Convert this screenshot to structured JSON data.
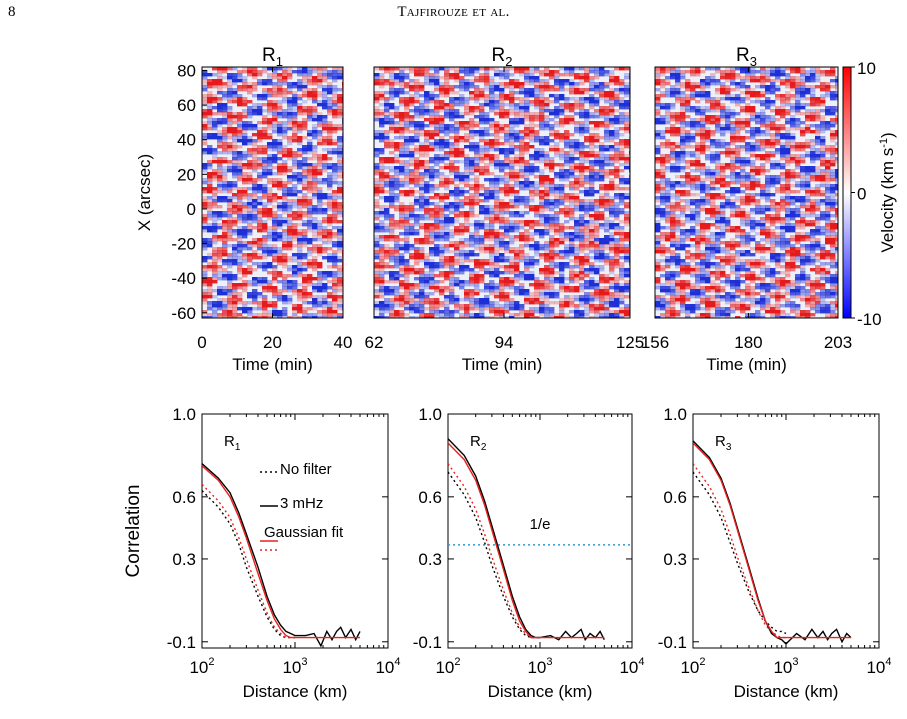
{
  "header": {
    "page_number": "8",
    "running_head": "Tajfirouze et al."
  },
  "colors": {
    "velocity_positive": "#e41a1c",
    "velocity_negative": "#1f2fd6",
    "no_filter": "#000000",
    "filtered_3mhz": "#000000",
    "gaussian_fit": "#e8221f",
    "e_fold_line": "#2a9fd6"
  },
  "chart_data": [
    {
      "type": "heatmap",
      "panel": "R1",
      "title_main": "R",
      "title_sub": "1",
      "xlabel": "Time (min)",
      "ylabel": "X (arcsec)",
      "xlim": [
        0,
        40
      ],
      "ylim": [
        -63,
        82
      ],
      "xticks": [
        "0",
        "20",
        "40"
      ],
      "yticks": [
        "80",
        "60",
        "40",
        "20",
        "0",
        "-20",
        "-40",
        "-60"
      ]
    },
    {
      "type": "heatmap",
      "panel": "R2",
      "title_main": "R",
      "title_sub": "2",
      "xlabel": "Time (min)",
      "ylabel": "",
      "xlim": [
        62,
        125
      ],
      "ylim": [
        -63,
        82
      ],
      "xticks": [
        "62",
        "94",
        "125"
      ]
    },
    {
      "type": "heatmap",
      "panel": "R3",
      "title_main": "R",
      "title_sub": "3",
      "xlabel": "Time (min)",
      "ylabel": "",
      "xlim": [
        156,
        203
      ],
      "ylim": [
        -63,
        82
      ],
      "xticks": [
        "156",
        "180",
        "203"
      ],
      "colorbar": {
        "label_main": "Velocity (km s",
        "label_sup": "-1",
        "label_end": ")",
        "range": [
          -10,
          10
        ],
        "ticks": [
          "10",
          "0",
          "-10"
        ]
      }
    },
    {
      "type": "line",
      "panel": "R1",
      "label_main": "R",
      "label_sub": "1",
      "xlabel": "Distance (km)",
      "ylabel": "Correlation",
      "xscale": "log",
      "xlim": [
        100,
        10000
      ],
      "ylim": [
        -0.13,
        1.0
      ],
      "xticks": [
        "10",
        "10",
        "10"
      ],
      "xtick_exps": [
        "2",
        "3",
        "4"
      ],
      "yticks": [
        "1.0",
        "0.6",
        "0.3",
        "-0.1"
      ],
      "legend": {
        "no_filter": "No filter",
        "filtered": "3 mHz",
        "fit": "Gaussian fit"
      },
      "series": [
        {
          "name": "No filter",
          "style": "dotted-black",
          "x": [
            100,
            150,
            200,
            250,
            300,
            400,
            500,
            600,
            700,
            800,
            900,
            1000
          ],
          "y": [
            0.63,
            0.55,
            0.47,
            0.37,
            0.26,
            0.12,
            0.02,
            -0.04,
            -0.07,
            -0.08,
            -0.08,
            -0.08
          ]
        },
        {
          "name": "",
          "style": "dotted-red",
          "x": [
            100,
            150,
            200,
            250,
            300,
            400,
            500,
            600,
            700,
            800,
            900,
            1000
          ],
          "y": [
            0.66,
            0.58,
            0.5,
            0.4,
            0.3,
            0.15,
            0.04,
            -0.03,
            -0.06,
            -0.08,
            -0.08,
            -0.08
          ]
        },
        {
          "name": "3 mHz",
          "style": "solid-black",
          "x": [
            100,
            150,
            200,
            250,
            300,
            400,
            500,
            600,
            700,
            800,
            900,
            1000,
            1300,
            1600,
            1900,
            2200,
            2500,
            2800,
            3100,
            3500,
            4000,
            4500,
            5000
          ],
          "y": [
            0.76,
            0.69,
            0.62,
            0.52,
            0.42,
            0.26,
            0.12,
            0.03,
            -0.02,
            -0.05,
            -0.06,
            -0.07,
            -0.07,
            -0.06,
            -0.12,
            -0.05,
            -0.09,
            -0.05,
            -0.03,
            -0.08,
            -0.04,
            -0.09,
            -0.05
          ]
        },
        {
          "name": "Gaussian fit",
          "style": "solid-red",
          "x": [
            100,
            150,
            200,
            250,
            300,
            400,
            500,
            600,
            700,
            800,
            900,
            1000,
            2000,
            5000
          ],
          "y": [
            0.75,
            0.68,
            0.6,
            0.5,
            0.4,
            0.23,
            0.1,
            0.01,
            -0.04,
            -0.07,
            -0.08,
            -0.08,
            -0.08,
            -0.08
          ]
        }
      ]
    },
    {
      "type": "line",
      "panel": "R2",
      "label_main": "R",
      "label_sub": "2",
      "xlabel": "Distance (km)",
      "ylabel": "",
      "xscale": "log",
      "xlim": [
        100,
        10000
      ],
      "ylim": [
        -0.13,
        1.0
      ],
      "xticks": [
        "10",
        "10",
        "10"
      ],
      "xtick_exps": [
        "2",
        "3",
        "4"
      ],
      "yticks": [
        "1.0",
        "0.6",
        "0.3",
        "-0.1"
      ],
      "annotation": "1/e",
      "hline": 0.368,
      "series": [
        {
          "name": "",
          "style": "dotted-black",
          "x": [
            100,
            150,
            200,
            250,
            300,
            400,
            500,
            600,
            700,
            800,
            900,
            1000
          ],
          "y": [
            0.72,
            0.61,
            0.5,
            0.38,
            0.27,
            0.12,
            0.02,
            -0.04,
            -0.07,
            -0.08,
            -0.08,
            -0.08
          ]
        },
        {
          "name": "",
          "style": "dotted-red",
          "x": [
            100,
            150,
            200,
            250,
            300,
            400,
            500,
            600,
            700,
            800,
            900,
            1000
          ],
          "y": [
            0.76,
            0.65,
            0.54,
            0.42,
            0.31,
            0.15,
            0.04,
            -0.03,
            -0.06,
            -0.08,
            -0.08,
            -0.08
          ]
        },
        {
          "name": "",
          "style": "solid-black",
          "x": [
            100,
            150,
            200,
            250,
            300,
            400,
            500,
            600,
            700,
            800,
            900,
            1000,
            1300,
            1600,
            1900,
            2200,
            2500,
            2800,
            3100,
            3500,
            4000,
            4500,
            5000
          ],
          "y": [
            0.88,
            0.8,
            0.7,
            0.58,
            0.46,
            0.27,
            0.12,
            0.02,
            -0.04,
            -0.07,
            -0.08,
            -0.08,
            -0.07,
            -0.09,
            -0.05,
            -0.08,
            -0.06,
            -0.04,
            -0.09,
            -0.06,
            -0.08,
            -0.05,
            -0.09
          ]
        },
        {
          "name": "",
          "style": "solid-red",
          "x": [
            100,
            150,
            200,
            250,
            300,
            400,
            500,
            600,
            700,
            800,
            900,
            1000,
            2000,
            5000
          ],
          "y": [
            0.86,
            0.78,
            0.68,
            0.56,
            0.44,
            0.25,
            0.1,
            0.0,
            -0.05,
            -0.08,
            -0.08,
            -0.08,
            -0.08,
            -0.08
          ]
        }
      ]
    },
    {
      "type": "line",
      "panel": "R3",
      "label_main": "R",
      "label_sub": "3",
      "xlabel": "Distance (km)",
      "ylabel": "",
      "xscale": "log",
      "xlim": [
        100,
        10000
      ],
      "ylim": [
        -0.13,
        1.0
      ],
      "xticks": [
        "10",
        "10",
        "10"
      ],
      "xtick_exps": [
        "2",
        "3",
        "4"
      ],
      "yticks": [
        "1.0",
        "0.6",
        "0.3",
        "-0.1"
      ],
      "series": [
        {
          "name": "",
          "style": "dotted-black",
          "x": [
            100,
            150,
            200,
            250,
            300,
            400,
            500,
            600,
            700,
            800,
            900,
            1000
          ],
          "y": [
            0.72,
            0.61,
            0.5,
            0.38,
            0.28,
            0.14,
            0.05,
            0.0,
            -0.03,
            -0.05,
            -0.05,
            -0.06
          ]
        },
        {
          "name": "",
          "style": "dotted-red",
          "x": [
            100,
            150,
            200,
            250,
            300,
            400,
            500,
            600,
            700,
            800,
            900,
            1000
          ],
          "y": [
            0.76,
            0.65,
            0.54,
            0.42,
            0.31,
            0.16,
            0.05,
            -0.02,
            -0.05,
            -0.07,
            -0.08,
            -0.08
          ]
        },
        {
          "name": "",
          "style": "solid-black",
          "x": [
            100,
            150,
            200,
            250,
            300,
            400,
            500,
            600,
            700,
            800,
            900,
            1000,
            1300,
            1600,
            1900,
            2200,
            2500,
            2800,
            3100,
            3500,
            4000,
            4500,
            5000
          ],
          "y": [
            0.87,
            0.79,
            0.69,
            0.57,
            0.45,
            0.26,
            0.11,
            0.0,
            -0.06,
            -0.08,
            -0.09,
            -0.11,
            -0.06,
            -0.09,
            -0.04,
            -0.08,
            -0.05,
            -0.09,
            -0.06,
            -0.04,
            -0.1,
            -0.06,
            -0.08
          ]
        },
        {
          "name": "",
          "style": "solid-red",
          "x": [
            100,
            150,
            200,
            250,
            300,
            400,
            500,
            600,
            700,
            800,
            900,
            1000,
            2000,
            5000
          ],
          "y": [
            0.86,
            0.78,
            0.68,
            0.56,
            0.44,
            0.25,
            0.1,
            0.0,
            -0.05,
            -0.08,
            -0.08,
            -0.08,
            -0.08,
            -0.08
          ]
        }
      ]
    }
  ]
}
